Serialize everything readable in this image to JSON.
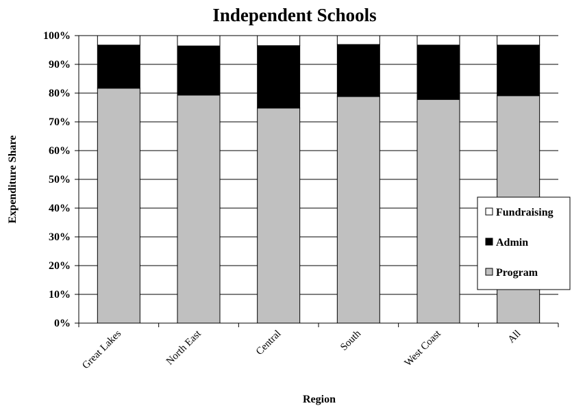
{
  "chart_data": {
    "type": "bar",
    "stacked": true,
    "title": "Independent Schools",
    "xlabel": "Region",
    "ylabel": "Expenditure Share",
    "ylim": [
      0,
      100
    ],
    "yticks": [
      "0%",
      "10%",
      "20%",
      "30%",
      "40%",
      "50%",
      "60%",
      "70%",
      "80%",
      "90%",
      "100%"
    ],
    "grid": true,
    "legend_position": "right",
    "categories": [
      "Great Lakes",
      "North East",
      "Central",
      "South",
      "West Coast",
      "All"
    ],
    "series": [
      {
        "name": "Program",
        "color": "#c0c0c0",
        "values": [
          81.7,
          79.3,
          74.8,
          78.8,
          77.8,
          79.1
        ]
      },
      {
        "name": "Admin",
        "color": "#000000",
        "values": [
          15.0,
          17.1,
          21.7,
          18.1,
          18.9,
          17.6
        ]
      },
      {
        "name": "Fundraising",
        "color": "#ffffff",
        "values": [
          3.3,
          3.6,
          3.5,
          3.1,
          3.3,
          3.3
        ]
      }
    ],
    "legend": [
      "Fundraising",
      "Admin",
      "Program"
    ]
  }
}
